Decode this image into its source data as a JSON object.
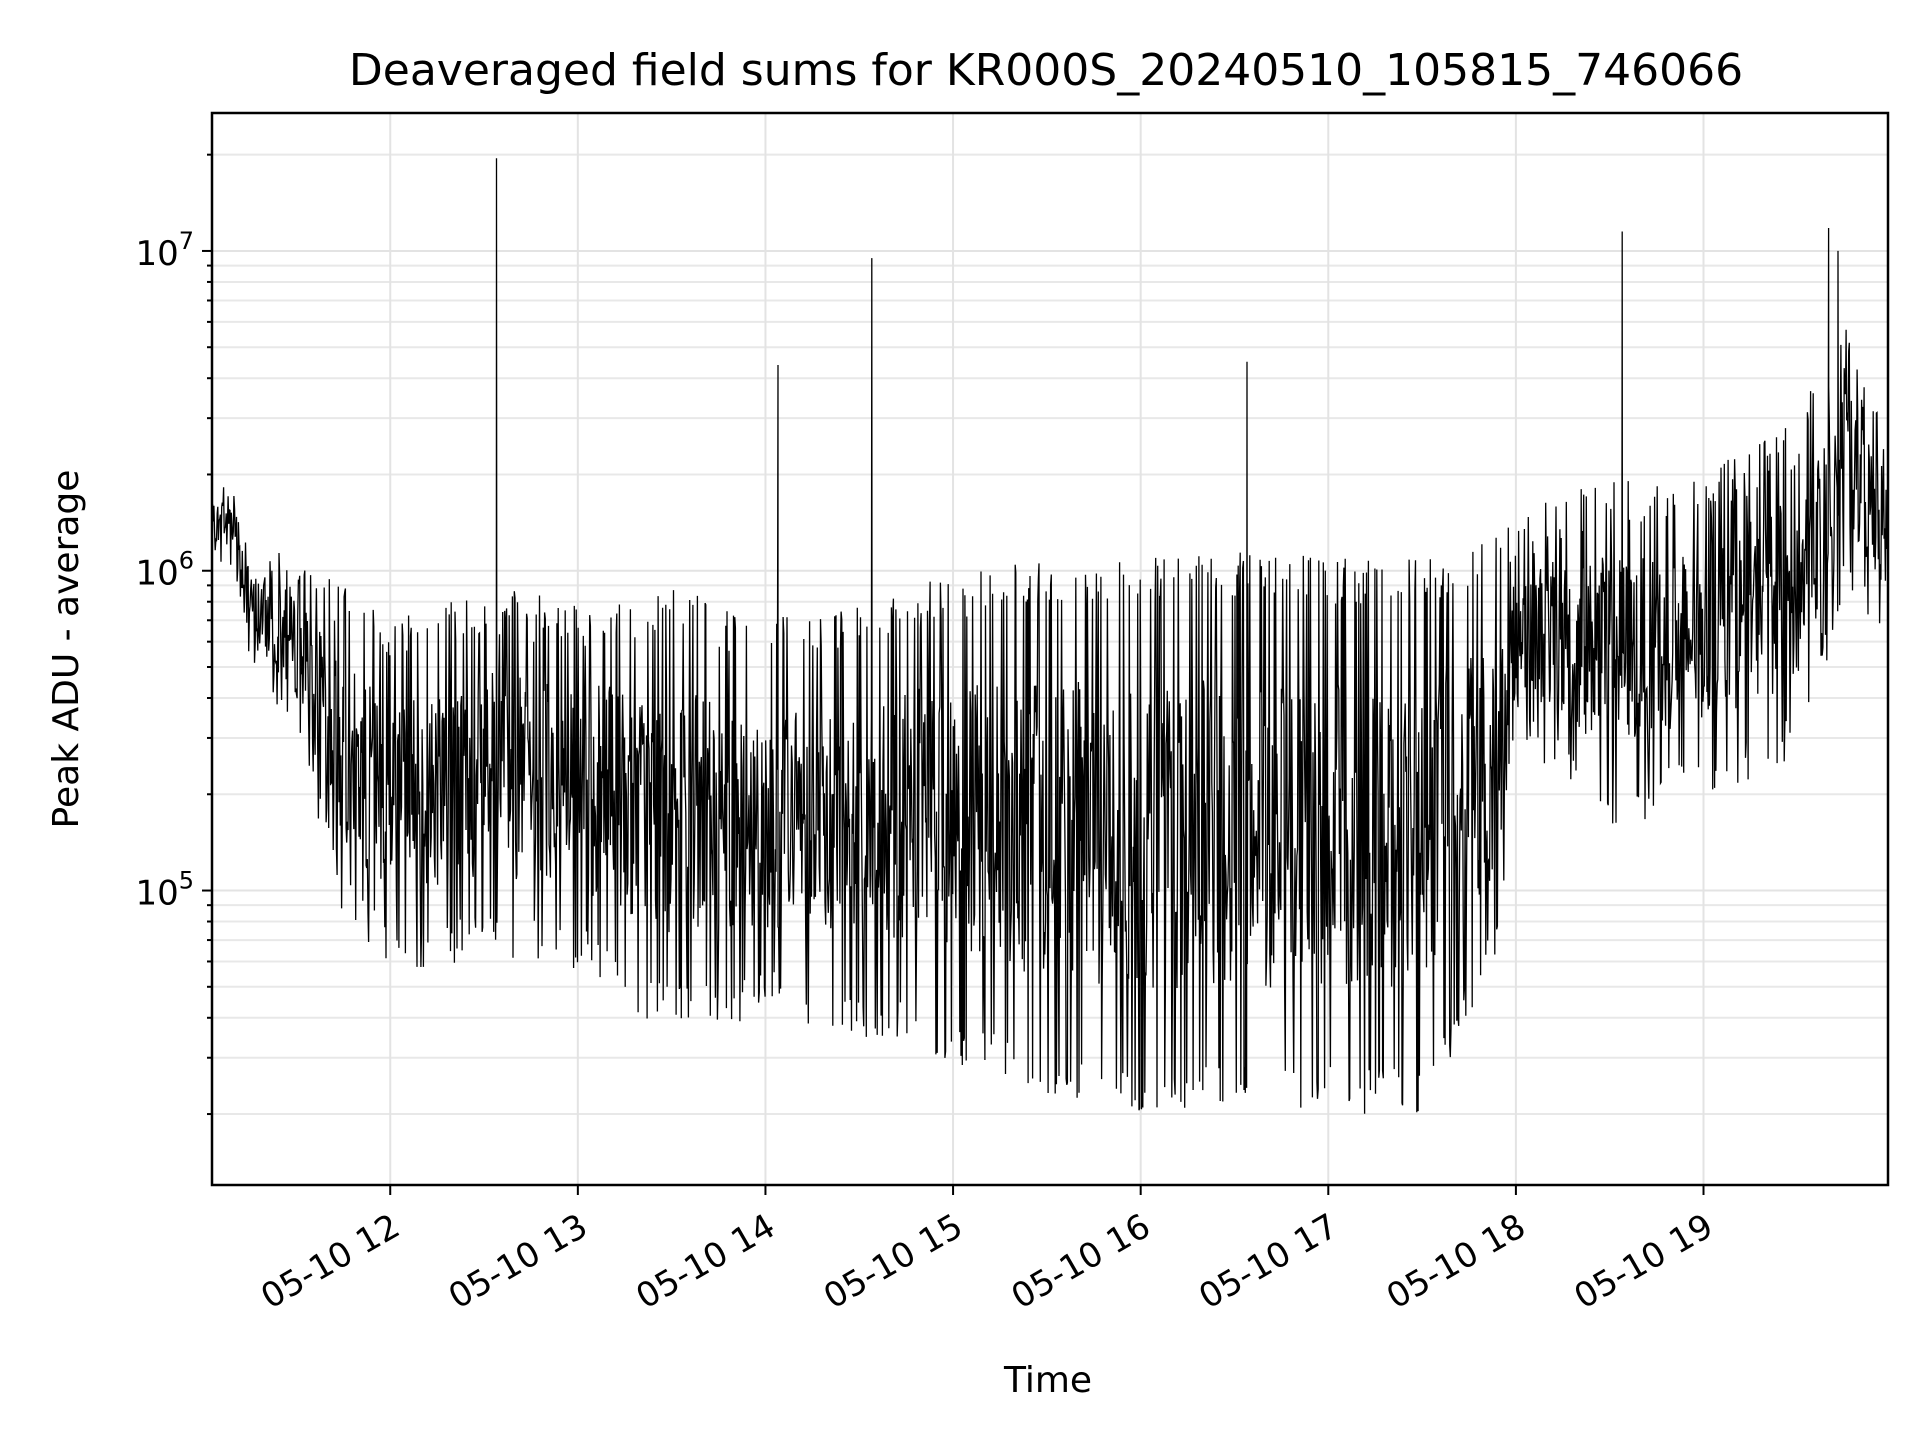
{
  "chart_data": {
    "type": "line",
    "title": "Deaveraged field sums for KR000S_20240510_105815_746066",
    "xlabel": "Time",
    "ylabel": "Peak ADU - average",
    "yscale": "log",
    "xlim": [
      "05-10 11:03",
      "05-10 19:59"
    ],
    "ylim": [
      12000,
      27000000
    ],
    "grid": true,
    "x_tick_labels": [
      "05-10 12",
      "05-10 13",
      "05-10 14",
      "05-10 15",
      "05-10 16",
      "05-10 17",
      "05-10 18",
      "05-10 19"
    ],
    "y_tick_labels": [
      {
        "base": "10",
        "exp": "5",
        "value": 100000
      },
      {
        "base": "10",
        "exp": "6",
        "value": 1000000
      },
      {
        "base": "10",
        "exp": "7",
        "value": 10000000
      }
    ],
    "series": [
      {
        "color": "#000000",
        "envelope": [
          {
            "t": "05-10 11:03",
            "low": 1100000,
            "high": 1800000
          },
          {
            "t": "05-10 11:10",
            "low": 1000000,
            "high": 2300000
          },
          {
            "t": "05-10 11:15",
            "low": 500000,
            "high": 1200000
          },
          {
            "t": "05-10 11:30",
            "low": 300000,
            "high": 1100000
          },
          {
            "t": "05-10 11:45",
            "low": 80000,
            "high": 900000
          },
          {
            "t": "05-10 12:00",
            "low": 55000,
            "high": 700000
          },
          {
            "t": "05-10 12:30",
            "low": 60000,
            "high": 900000
          },
          {
            "t": "05-10 13:00",
            "low": 55000,
            "high": 800000
          },
          {
            "t": "05-10 13:30",
            "low": 35000,
            "high": 900000
          },
          {
            "t": "05-10 14:00",
            "low": 40000,
            "high": 700000
          },
          {
            "t": "05-10 14:30",
            "low": 35000,
            "high": 800000
          },
          {
            "t": "05-10 15:00",
            "low": 28000,
            "high": 1000000
          },
          {
            "t": "05-10 15:30",
            "low": 22000,
            "high": 1100000
          },
          {
            "t": "05-10 16:00",
            "low": 20000,
            "high": 1100000
          },
          {
            "t": "05-10 16:30",
            "low": 20000,
            "high": 1150000
          },
          {
            "t": "05-10 17:00",
            "low": 20000,
            "high": 1100000
          },
          {
            "t": "05-10 17:30",
            "low": 20000,
            "high": 1100000
          },
          {
            "t": "05-10 17:55",
            "low": 60000,
            "high": 1300000
          },
          {
            "t": "05-10 18:00",
            "low": 300000,
            "high": 1500000
          },
          {
            "t": "05-10 18:30",
            "low": 150000,
            "high": 2000000
          },
          {
            "t": "05-10 19:00",
            "low": 200000,
            "high": 2000000
          },
          {
            "t": "05-10 19:30",
            "low": 250000,
            "high": 3000000
          },
          {
            "t": "05-10 19:45",
            "low": 800000,
            "high": 6000000
          },
          {
            "t": "05-10 19:59",
            "low": 600000,
            "high": 3000000
          }
        ],
        "spikes": [
          {
            "t": "05-10 12:34",
            "value": 19500000
          },
          {
            "t": "05-10 14:04",
            "value": 4400000
          },
          {
            "t": "05-10 14:34",
            "value": 9500000
          },
          {
            "t": "05-10 16:34",
            "value": 4500000
          },
          {
            "t": "05-10 18:34",
            "value": 11500000
          },
          {
            "t": "05-10 19:40",
            "value": 11800000
          },
          {
            "t": "05-10 19:43",
            "value": 10000000
          }
        ]
      }
    ]
  }
}
